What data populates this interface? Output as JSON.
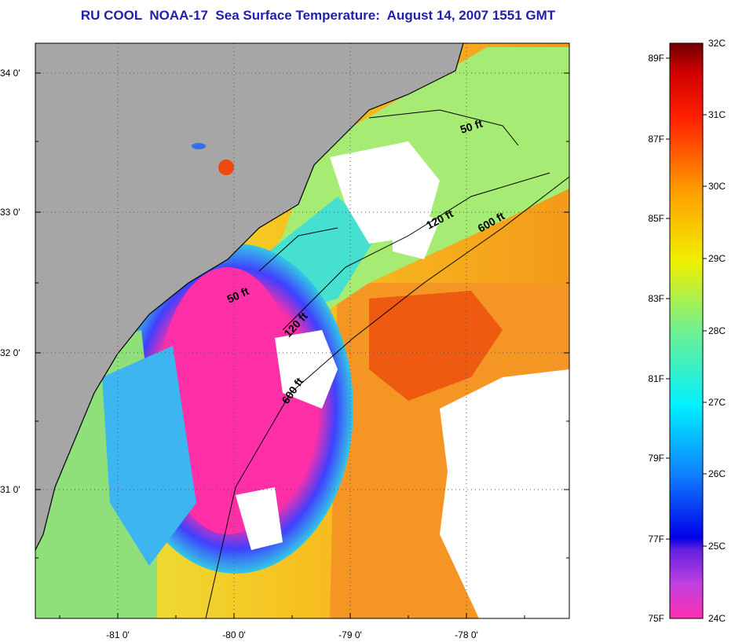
{
  "title": "RU COOL  NOAA-17  Sea Surface Temperature:  August 14, 2007 1551 GMT",
  "map": {
    "lat_ticks": [
      "34 0'",
      "33 0'",
      "32 0'",
      "31 0'"
    ],
    "lon_ticks": [
      "-81 0'",
      "-80 0'",
      "-79 0'",
      "-78 0'"
    ],
    "contour_labels": [
      {
        "text": "50 ft",
        "key": "c50a"
      },
      {
        "text": "50 ft",
        "key": "c50b"
      },
      {
        "text": "120 ft",
        "key": "c120a"
      },
      {
        "text": "120 ft",
        "key": "c120b"
      },
      {
        "text": "600 ft",
        "key": "c600a"
      },
      {
        "text": "600 ft",
        "key": "c600b"
      }
    ],
    "colors": {
      "land": "#a6a6a6",
      "cloud": "#ffffff",
      "cold": "#ff33aa"
    }
  },
  "colorbar": {
    "celsius": [
      "32C",
      "31C",
      "30C",
      "29C",
      "28C",
      "27C",
      "26C",
      "25C",
      "24C"
    ],
    "fahrenheit": [
      "89F",
      "87F",
      "85F",
      "83F",
      "81F",
      "79F",
      "77F",
      "75F"
    ],
    "range_c": [
      24,
      32
    ]
  }
}
